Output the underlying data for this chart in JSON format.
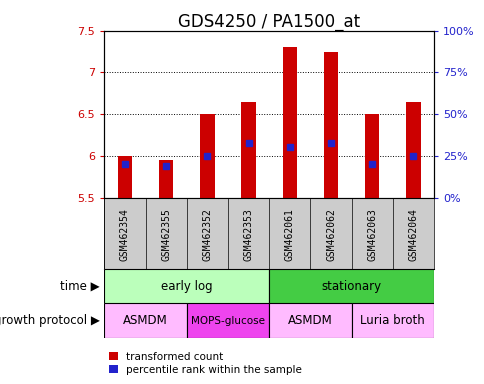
{
  "title": "GDS4250 / PA1500_at",
  "samples": [
    "GSM462354",
    "GSM462355",
    "GSM462352",
    "GSM462353",
    "GSM462061",
    "GSM462062",
    "GSM462063",
    "GSM462064"
  ],
  "transformed_counts": [
    6.0,
    5.95,
    6.5,
    6.65,
    7.3,
    7.25,
    6.5,
    6.65
  ],
  "percentile_ranks_y": [
    5.9,
    5.88,
    6.0,
    6.16,
    6.11,
    6.16,
    5.9,
    6.0
  ],
  "ymin": 5.5,
  "ymax": 7.5,
  "bar_color": "#cc0000",
  "blue_color": "#2222cc",
  "time_groups": [
    {
      "label": "early log",
      "start": 0,
      "end": 4,
      "color": "#bbffbb"
    },
    {
      "label": "stationary",
      "start": 4,
      "end": 8,
      "color": "#44cc44"
    }
  ],
  "protocol_groups": [
    {
      "label": "ASMDM",
      "start": 0,
      "end": 2,
      "color": "#ffbbff"
    },
    {
      "label": "MOPS-glucose",
      "start": 2,
      "end": 4,
      "color": "#ee44ee"
    },
    {
      "label": "ASMDM",
      "start": 4,
      "end": 6,
      "color": "#ffbbff"
    },
    {
      "label": "Luria broth",
      "start": 6,
      "end": 8,
      "color": "#ffbbff"
    }
  ],
  "right_yticks_pct": [
    0,
    25,
    50,
    75,
    100
  ],
  "right_ylabels": [
    "0%",
    "25%",
    "50%",
    "75%",
    "100%"
  ],
  "legend_red_label": "transformed count",
  "legend_blue_label": "percentile rank within the sample",
  "time_label": "time",
  "protocol_label": "growth protocol",
  "title_fontsize": 12,
  "tick_fontsize": 8,
  "sample_fontsize": 7,
  "row_label_fontsize": 8.5,
  "bar_width": 0.35,
  "sample_bg_color": "#cccccc",
  "blue_marker_size": 5
}
